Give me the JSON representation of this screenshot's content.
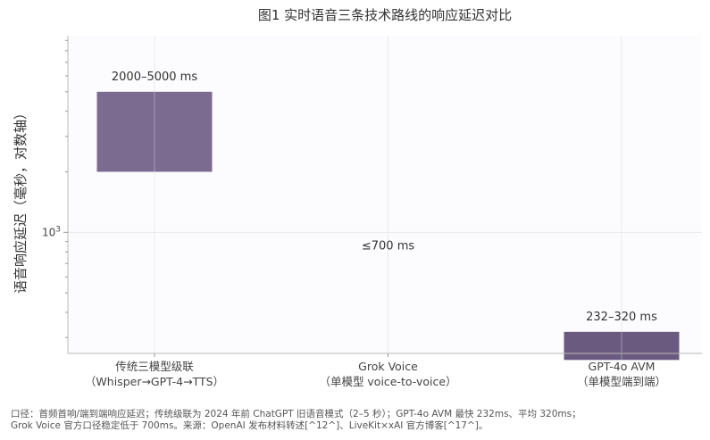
{
  "chart_data": {
    "type": "bar",
    "title": "图1 实时语音三条技术路线的响应延迟对比",
    "ylabel": "语音响应延迟（毫秒，对数轴）",
    "ylim": [
      250,
      9500
    ],
    "yscale": "log",
    "y_major_ticks": [
      1000
    ],
    "y_major_tick_label": "10^3",
    "categories": [
      {
        "line1": "传统三模型级联",
        "line2": "（Whisper→GPT-4→TTS）"
      },
      {
        "line1": "Grok Voice",
        "line2": "（单模型 voice-to-voice）"
      },
      {
        "line1": "GPT-4o AVM",
        "line2": "（单模型端到端）"
      }
    ],
    "series": [
      {
        "ranges": [
          [
            2000,
            5000
          ],
          null,
          [
            232,
            320
          ]
        ],
        "range_labels": [
          "2000–5000 ms",
          "≤700 ms",
          "232–320 ms"
        ],
        "colors": [
          "#7b6b91",
          "#6b5a80",
          "#6b5a80"
        ]
      }
    ],
    "grid": true,
    "background": "#fcfbfd",
    "note_lines": [
      "口径：首频首响/端到端响应延迟；传统级联为 2024 年前 ChatGPT 旧语音模式（2–5 秒）；GPT-4o AVM 最快 232ms、平均 320ms；",
      "Grok Voice 官方口径稳定低于 700ms。来源：OpenAI 发布材料转述[^12^]、LiveKit×xAI 官方博客[^17^]。"
    ]
  }
}
